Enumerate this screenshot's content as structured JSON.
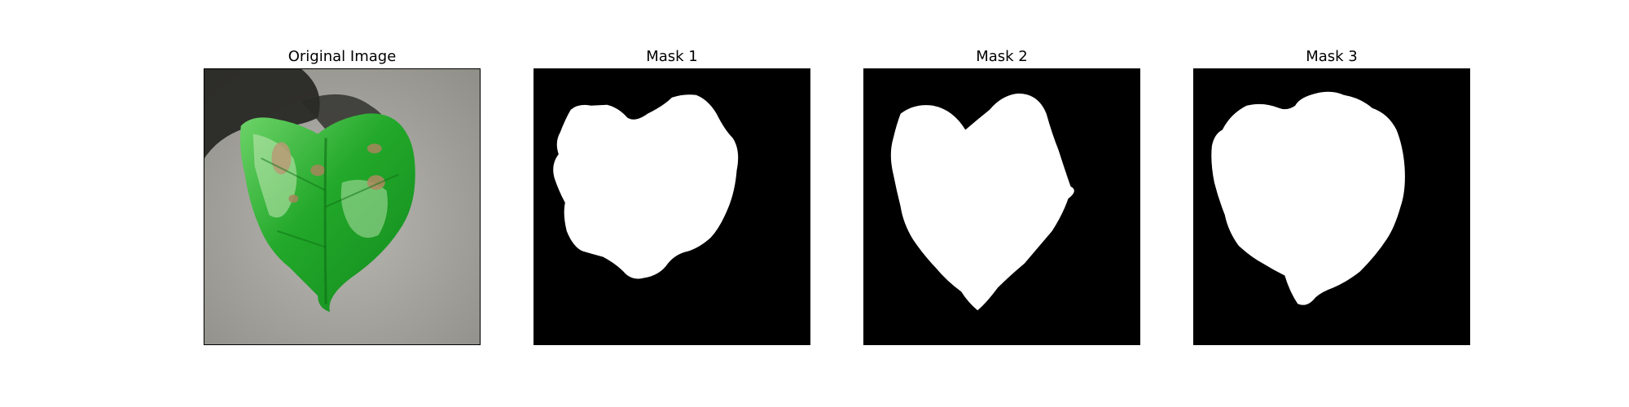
{
  "figure": {
    "panels": [
      {
        "title": "Original Image",
        "kind": "photo"
      },
      {
        "title": "Mask 1",
        "kind": "mask"
      },
      {
        "title": "Mask 2",
        "kind": "mask"
      },
      {
        "title": "Mask 3",
        "kind": "mask"
      }
    ],
    "colors": {
      "mask_background": "#000000",
      "mask_foreground": "#ffffff",
      "leaf_green": "#2db52d",
      "leaf_dark": "#0f7a18",
      "leaf_light": "#9be38f",
      "background_gray": "#a9a8a3",
      "shadow": "#1e1e1c",
      "lesion_brown": "#a7855c"
    }
  }
}
